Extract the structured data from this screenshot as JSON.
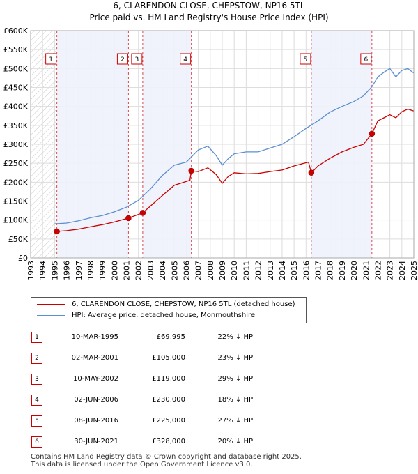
{
  "chart_data": {
    "type": "line",
    "title_line1": "6, CLARENDON CLOSE, CHEPSTOW, NP16 5TL",
    "title_line2": "Price paid vs. HM Land Registry's House Price Index (HPI)",
    "xlim": [
      1993,
      2025
    ],
    "ylim": [
      0,
      600000
    ],
    "x_ticks": [
      "1993",
      "1994",
      "1995",
      "1996",
      "1997",
      "1998",
      "1999",
      "2000",
      "2001",
      "2002",
      "2003",
      "2004",
      "2005",
      "2006",
      "2007",
      "2008",
      "2009",
      "2010",
      "2011",
      "2012",
      "2013",
      "2014",
      "2015",
      "2016",
      "2017",
      "2018",
      "2019",
      "2020",
      "2021",
      "2022",
      "2023",
      "2024",
      "2025"
    ],
    "y_ticks": [
      {
        "value": 0,
        "label": "£0"
      },
      {
        "value": 50000,
        "label": "£50K"
      },
      {
        "value": 100000,
        "label": "£100K"
      },
      {
        "value": 150000,
        "label": "£150K"
      },
      {
        "value": 200000,
        "label": "£200K"
      },
      {
        "value": 250000,
        "label": "£250K"
      },
      {
        "value": 300000,
        "label": "£300K"
      },
      {
        "value": 350000,
        "label": "£350K"
      },
      {
        "value": 400000,
        "label": "£400K"
      },
      {
        "value": 450000,
        "label": "£450K"
      },
      {
        "value": 500000,
        "label": "£500K"
      },
      {
        "value": 550000,
        "label": "£550K"
      },
      {
        "value": 600000,
        "label": "£600K"
      }
    ],
    "series": [
      {
        "name": "6, CLARENDON CLOSE, CHEPSTOW, NP16 5TL (detached house)",
        "color": "#cc0000",
        "x": [
          1995.19,
          1996,
          1997,
          1998,
          1999,
          2000,
          2001.17,
          2002.36,
          2003,
          2004,
          2005,
          2006.3,
          2006.42,
          2007,
          2007.8,
          2008.5,
          2009,
          2009.5,
          2010,
          2011,
          2012,
          2013,
          2014,
          2015,
          2016.2,
          2016.44,
          2017,
          2018,
          2019,
          2020,
          2020.8,
          2021.5,
          2022,
          2022.5,
          2023,
          2023.5,
          2024,
          2024.5,
          2025
        ],
        "values": [
          69995,
          72000,
          76000,
          82000,
          88000,
          95000,
          105000,
          119000,
          137000,
          165000,
          192000,
          205000,
          230000,
          228000,
          238000,
          220000,
          197000,
          215000,
          225000,
          222000,
          223000,
          228000,
          232000,
          243000,
          253000,
          225000,
          243000,
          263000,
          280000,
          292000,
          300000,
          328000,
          362000,
          370000,
          378000,
          370000,
          386000,
          393000,
          388000
        ]
      },
      {
        "name": "HPI: Average price, detached house, Monmouthshire",
        "color": "#5b8fd0",
        "x": [
          1995,
          1996,
          1997,
          1998,
          1999,
          2000,
          2001,
          2002,
          2003,
          2004,
          2005,
          2006,
          2007,
          2007.8,
          2008.5,
          2009,
          2009.5,
          2010,
          2011,
          2012,
          2013,
          2014,
          2015,
          2016,
          2017,
          2018,
          2019,
          2020,
          2020.8,
          2021.5,
          2022,
          2022.5,
          2023,
          2023.5,
          2024,
          2024.5,
          2025
        ],
        "values": [
          90000,
          92000,
          98000,
          106000,
          112000,
          122000,
          134000,
          152000,
          182000,
          218000,
          245000,
          253000,
          285000,
          295000,
          270000,
          245000,
          262000,
          275000,
          280000,
          280000,
          290000,
          300000,
          320000,
          342000,
          362000,
          385000,
          400000,
          413000,
          428000,
          452000,
          478000,
          490000,
          500000,
          478000,
          495000,
          500000,
          488000
        ]
      }
    ],
    "sales": [
      {
        "num": "1",
        "x": 1995.19,
        "value": 69995,
        "date": "10-MAR-1995",
        "price": "£69,995",
        "hpi": "22% ↓ HPI"
      },
      {
        "num": "2",
        "x": 2001.17,
        "value": 105000,
        "date": "02-MAR-2001",
        "price": "£105,000",
        "hpi": "23% ↓ HPI"
      },
      {
        "num": "3",
        "x": 2002.36,
        "value": 119000,
        "date": "10-MAY-2002",
        "price": "£119,000",
        "hpi": "29% ↓ HPI"
      },
      {
        "num": "4",
        "x": 2006.42,
        "value": 230000,
        "date": "02-JUN-2006",
        "price": "£230,000",
        "hpi": "18% ↓ HPI"
      },
      {
        "num": "5",
        "x": 2016.44,
        "value": 225000,
        "date": "08-JUN-2016",
        "price": "£225,000",
        "hpi": "27% ↓ HPI"
      },
      {
        "num": "6",
        "x": 2021.5,
        "value": 328000,
        "date": "30-JUN-2021",
        "price": "£328,000",
        "hpi": "20% ↓ HPI"
      }
    ],
    "highlight_colors": {
      "band": "#eef2fb",
      "hatch": "#c8c8c8",
      "sale_line": "#cc0000",
      "grid": "#dddddd"
    }
  },
  "legend": {
    "property_label": "6, CLARENDON CLOSE, CHEPSTOW, NP16 5TL (detached house)",
    "hpi_label": "HPI: Average price, detached house, Monmouthshire"
  },
  "footer": {
    "line1": "Contains HM Land Registry data © Crown copyright and database right 2025.",
    "line2": "This data is licensed under the Open Government Licence v3.0."
  }
}
